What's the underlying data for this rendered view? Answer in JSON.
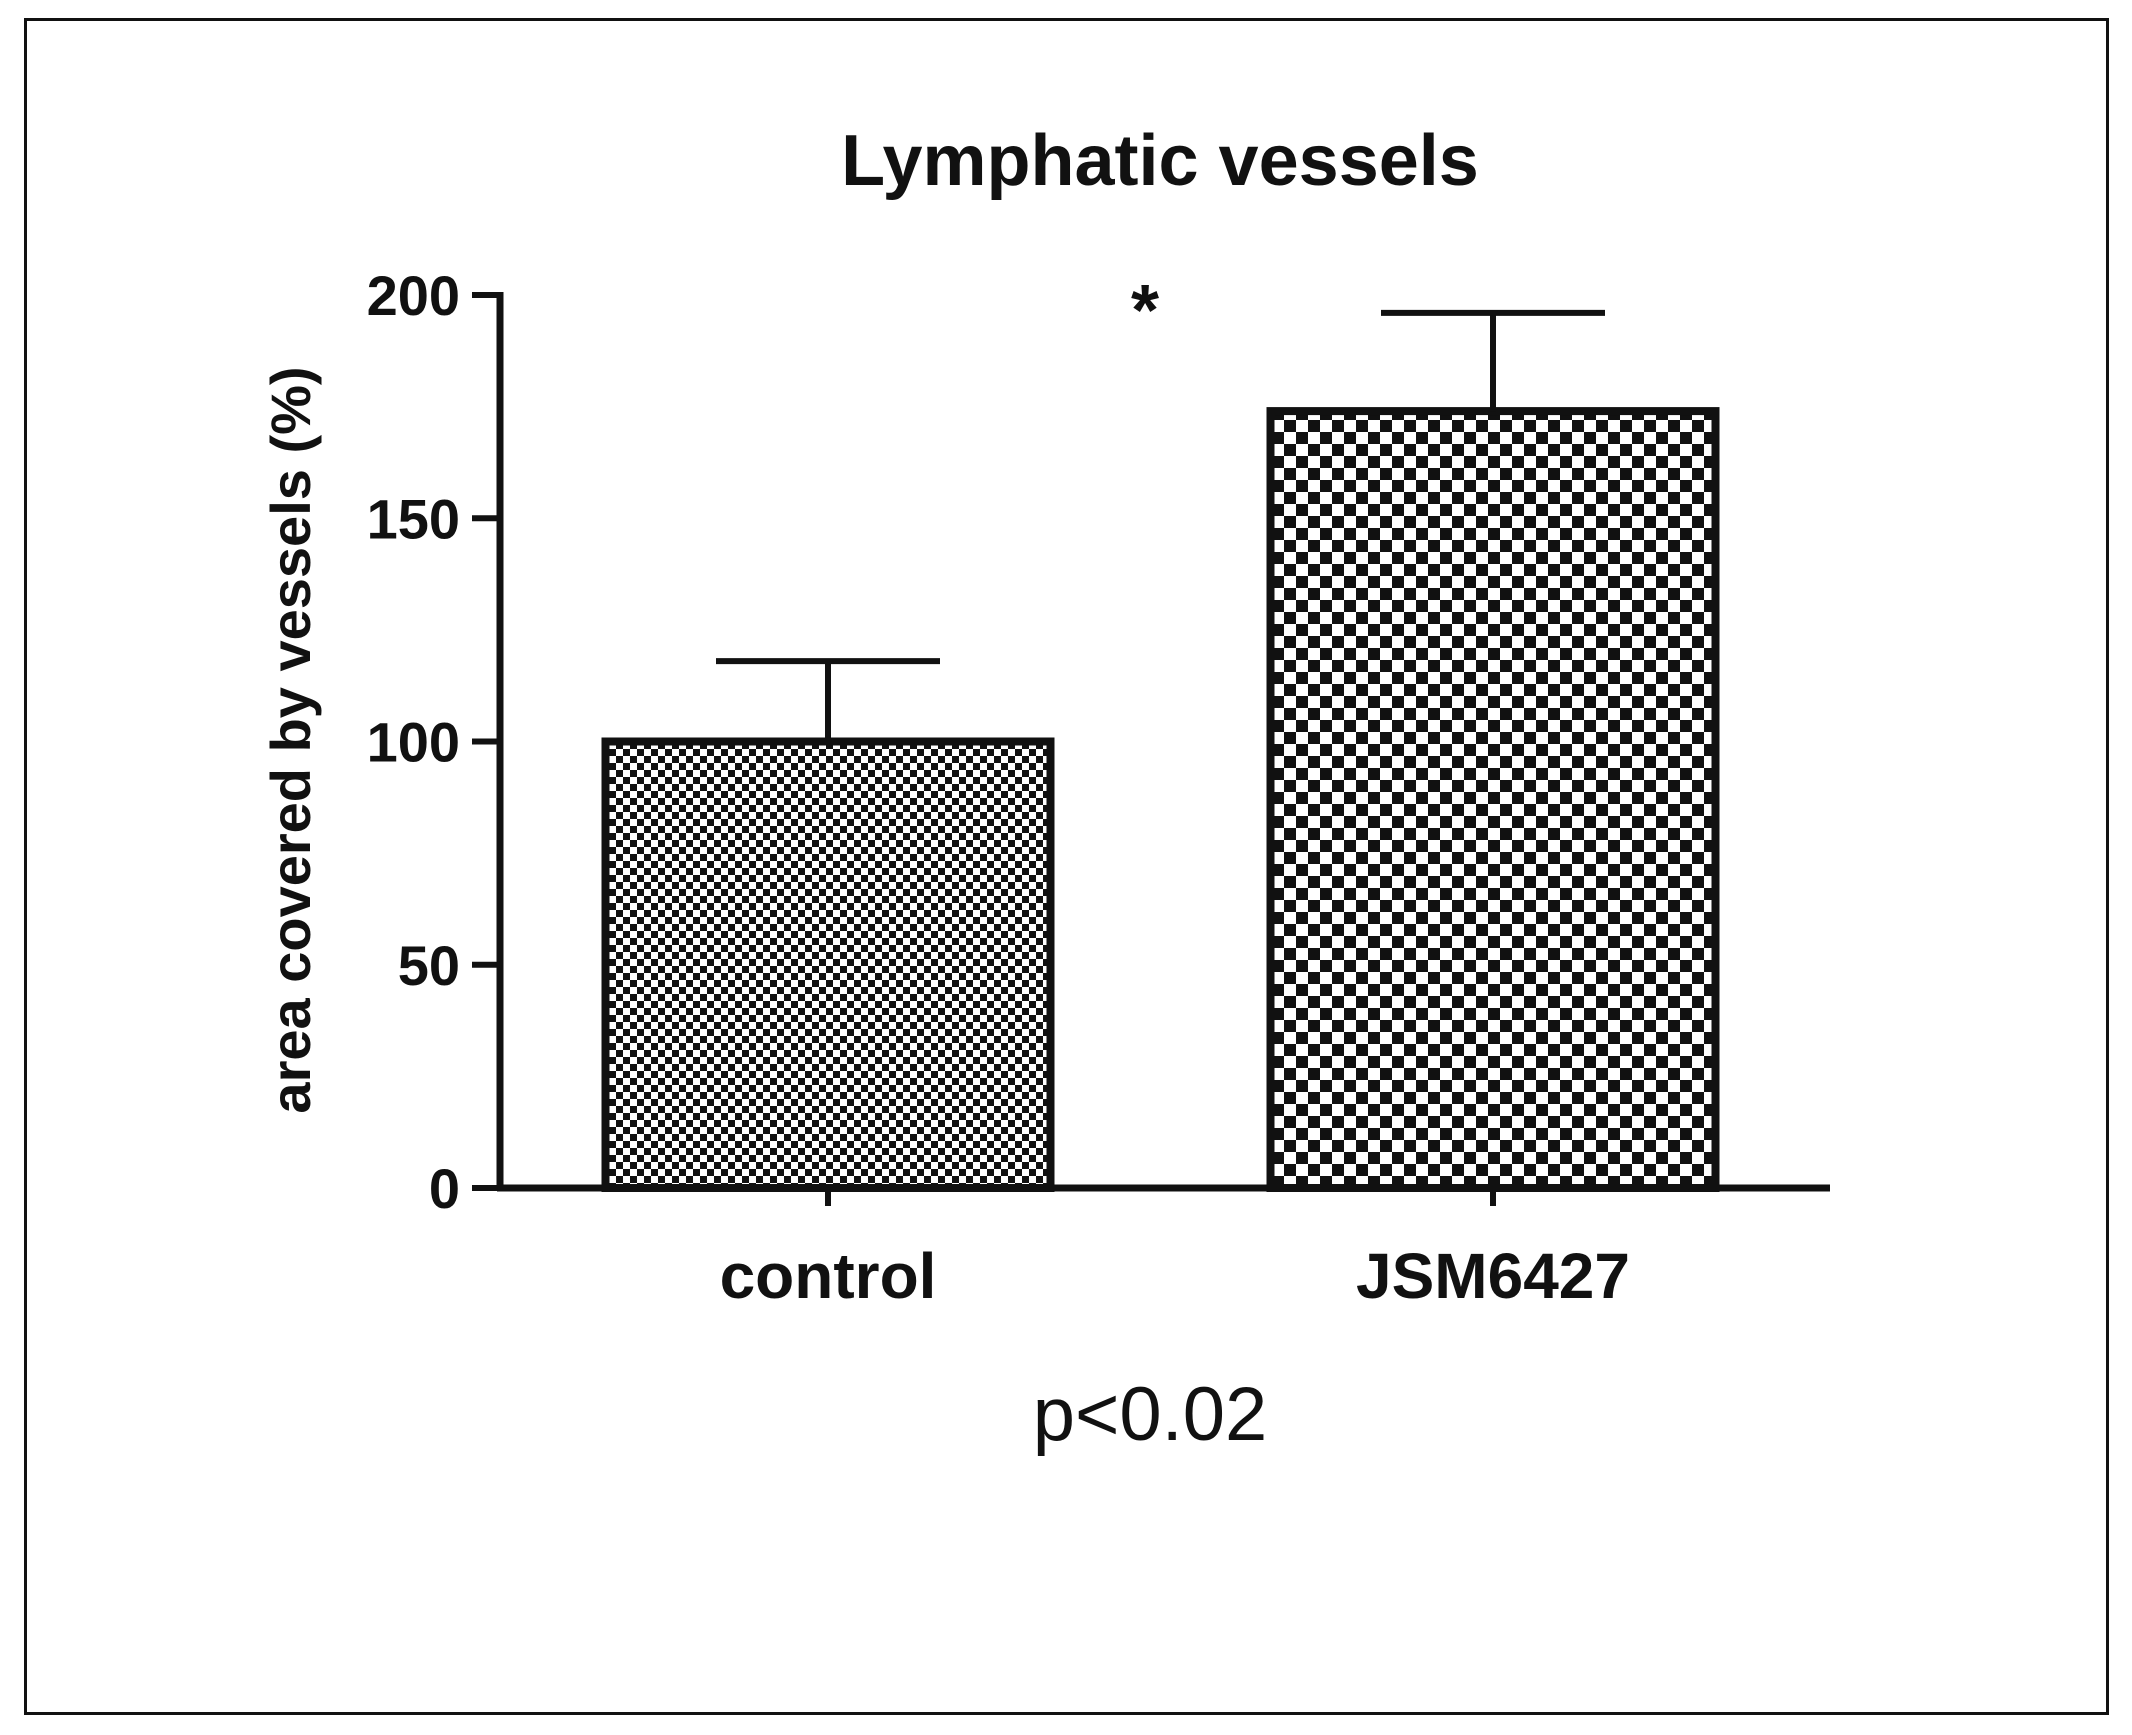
{
  "chart_data": {
    "type": "bar",
    "title": "Lymphatic vessels",
    "ylabel": "area covered by vessels (%)",
    "xlabel": "",
    "categories": [
      "control",
      "JSM6427"
    ],
    "values": [
      100,
      174
    ],
    "error_bars": [
      18,
      22
    ],
    "ylim": [
      0,
      200
    ],
    "yticks": [
      0,
      50,
      100,
      150,
      200
    ],
    "ytick_labels": [
      "0",
      "50",
      "100",
      "150",
      "200"
    ],
    "annotation": "*",
    "note": "p<0.02",
    "grid": false,
    "legend": "none",
    "colors": {
      "axis": "#111111",
      "bar_fill_dark": "#111111",
      "bar_fill_light": "#ffffff",
      "text": "#111111",
      "frame": "#111111"
    }
  }
}
